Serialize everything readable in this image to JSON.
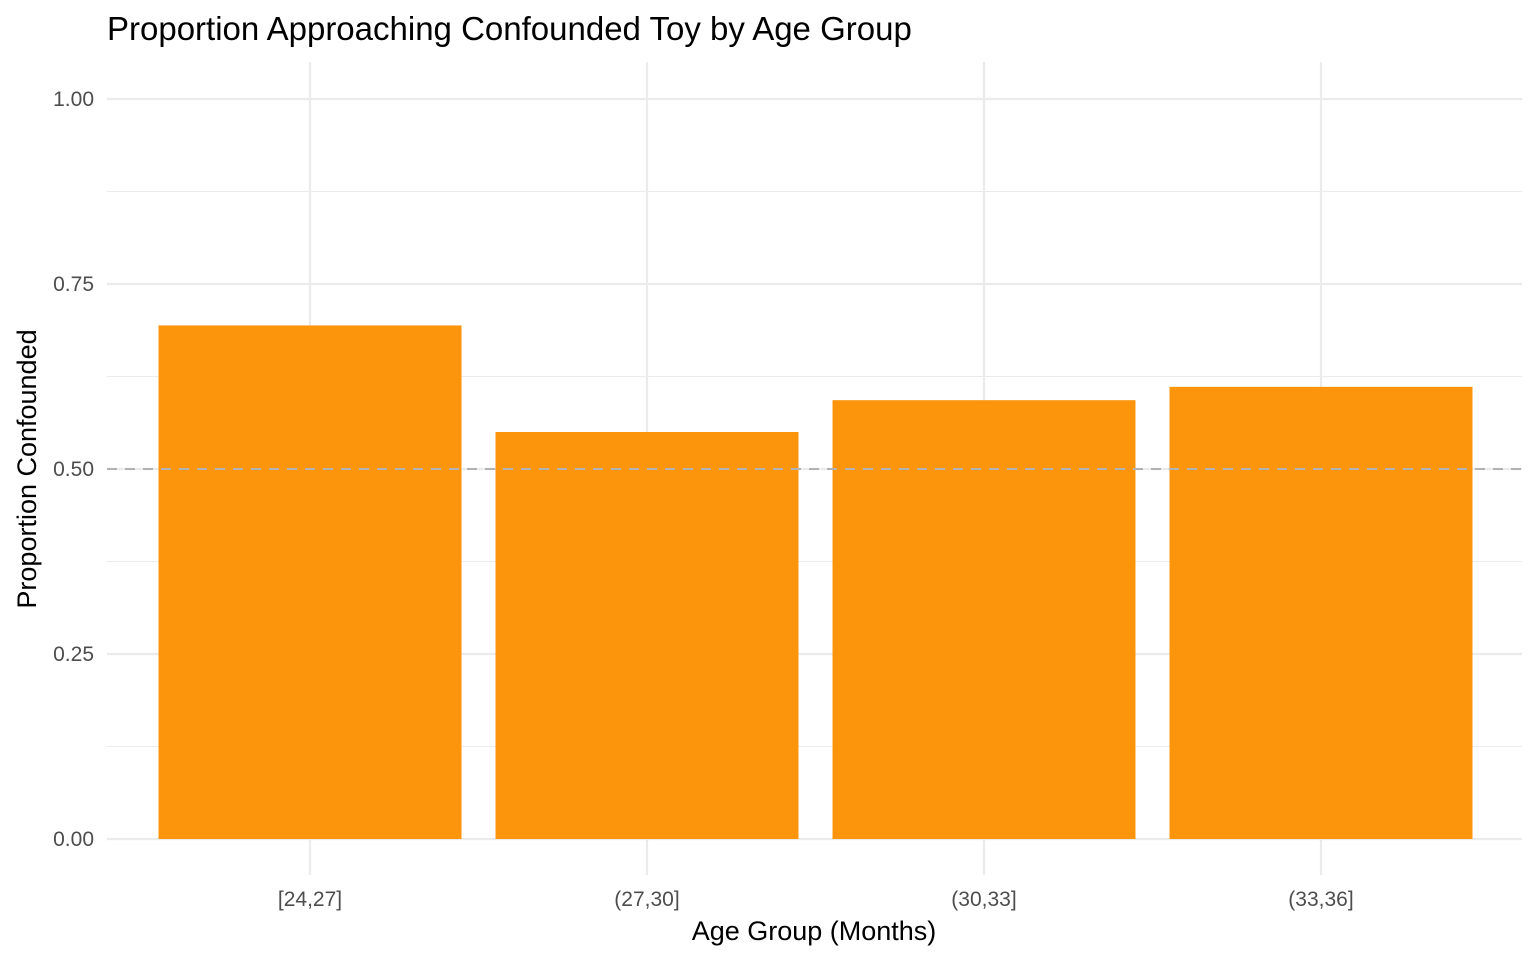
{
  "chart_data": {
    "type": "bar",
    "title": "Proportion Approaching Confounded Toy by Age Group",
    "xlabel": "Age Group (Months)",
    "ylabel": "Proportion Confounded",
    "categories": [
      "[24,27]",
      "(27,30]",
      "(30,33]",
      "(33,36]"
    ],
    "values": [
      0.694,
      0.55,
      0.593,
      0.611
    ],
    "ylim": [
      0,
      1.0
    ],
    "yticks": [
      "0.00",
      "0.25",
      "0.50",
      "0.75",
      "1.00"
    ],
    "ytick_values": [
      0,
      0.25,
      0.5,
      0.75,
      1.0
    ],
    "reference_line": {
      "y": 0.5,
      "style": "dashed",
      "color": "#b3b3b3"
    },
    "bar_color": "#fc940c",
    "grid": true,
    "legend": "none"
  }
}
